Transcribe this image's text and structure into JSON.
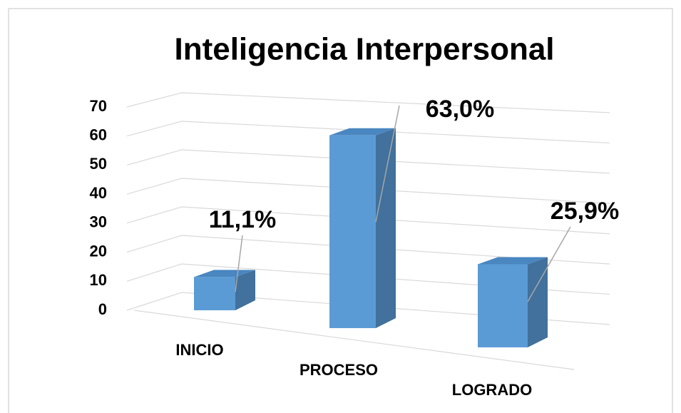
{
  "chart_data": {
    "type": "bar3d",
    "title": "Inteligencia Interpersonal",
    "categories": [
      "INICIO",
      "PROCESO",
      "LOGRADO"
    ],
    "values": [
      11.1,
      63.0,
      25.9
    ],
    "value_labels": [
      "11,1%",
      "63,0%",
      "25,9%"
    ],
    "color": "#5b9bd5",
    "ylim": [
      0,
      70
    ],
    "yticks": [
      0,
      10,
      20,
      30,
      40,
      50,
      60,
      70
    ],
    "grid": true
  }
}
